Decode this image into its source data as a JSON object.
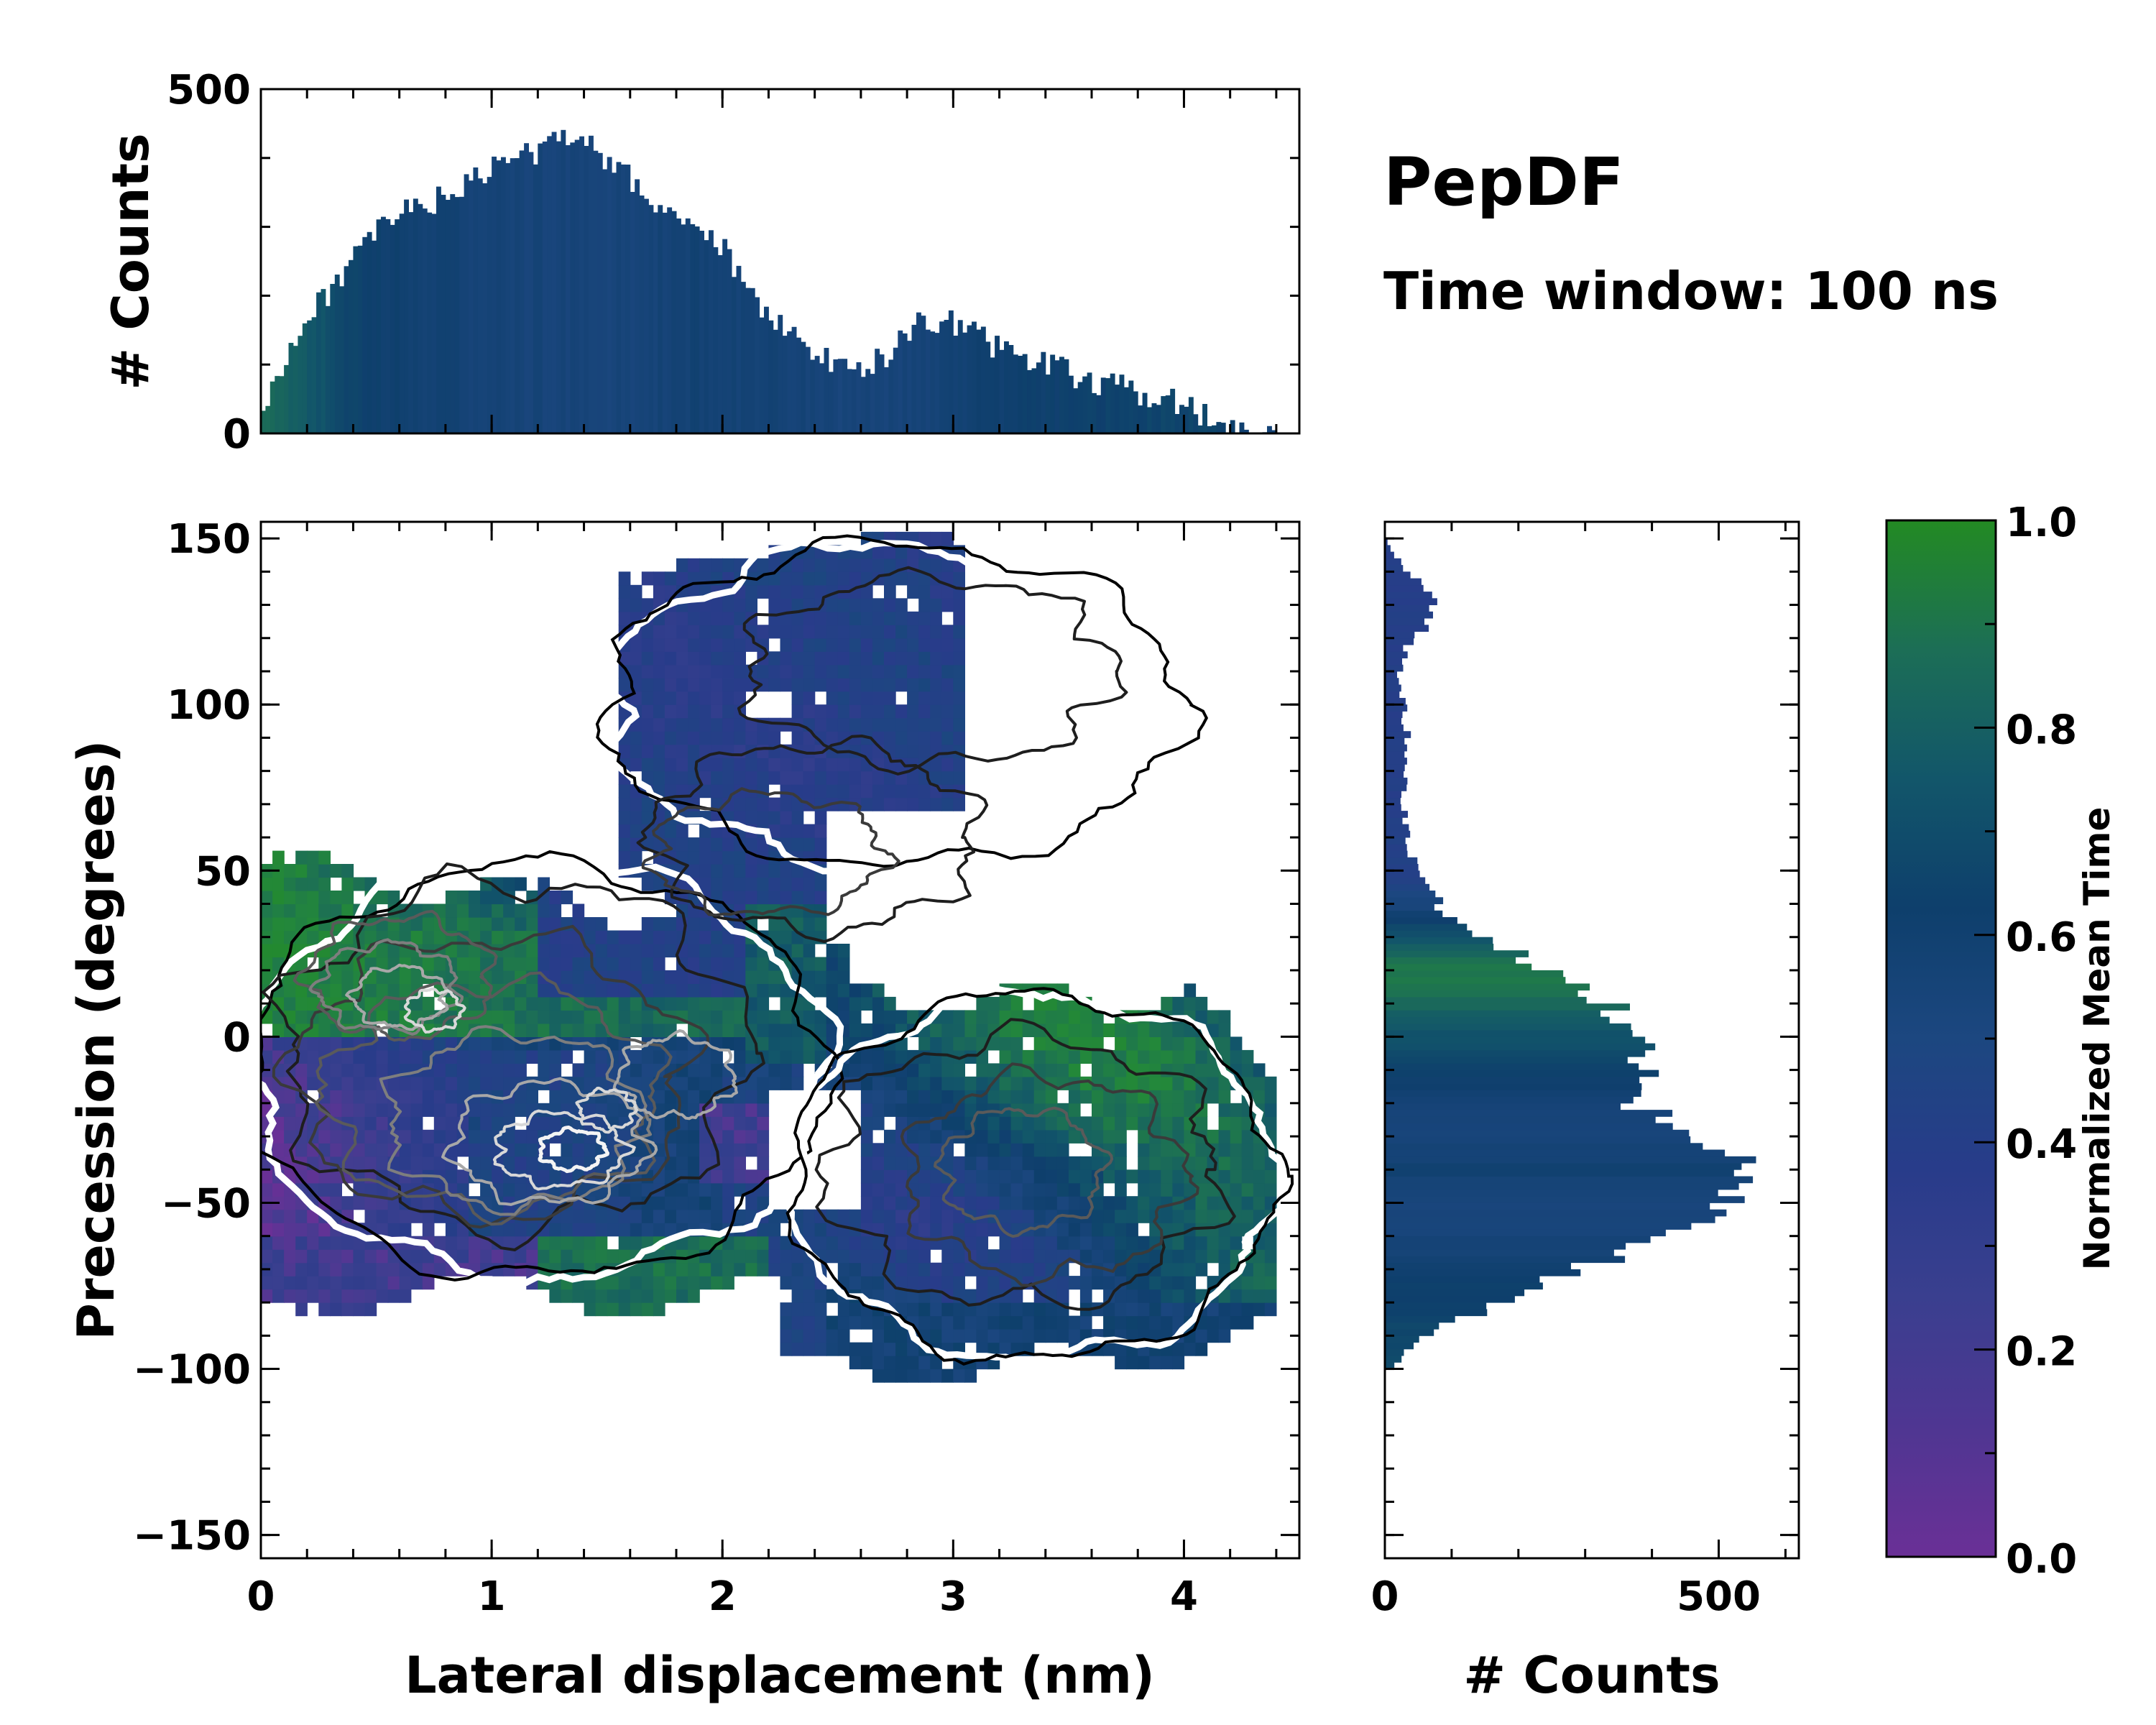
{
  "title": "PepDF",
  "subtitle": "Time window: 100 ns",
  "chart_data": [
    {
      "id": "main",
      "type": "heatmap",
      "xlabel": "Lateral displacement (nm)",
      "ylabel": "Precession (degrees)",
      "xlim": [
        0,
        4.5
      ],
      "ylim": [
        -157,
        155
      ],
      "xticks": [
        0,
        1,
        2,
        3,
        4
      ],
      "yticks": [
        -150,
        -100,
        -50,
        0,
        50,
        100,
        150
      ],
      "cell_x": 0.05,
      "cell_y": 4,
      "contour_levels": 6,
      "regions": [
        {
          "name": "low-x cluster (mean time ~0.1 near -40 deg, ~0.9 near +20 deg)",
          "x": [
            0,
            2.4
          ],
          "y": [
            -80,
            50
          ]
        },
        {
          "name": "upper branch (mean time ~0.3)",
          "x": [
            1.4,
            4.0
          ],
          "y": [
            50,
            152
          ]
        },
        {
          "name": "right lobe (mean time ~0.5-0.8)",
          "x": [
            2.3,
            4.4
          ],
          "y": [
            -100,
            12
          ]
        }
      ]
    },
    {
      "id": "top",
      "type": "bar",
      "ylabel": "# Counts",
      "xlim": [
        0,
        4.5
      ],
      "ylim": [
        0,
        500
      ],
      "yticks": [
        0,
        500
      ],
      "bin_width": 0.02,
      "x": [
        0.0,
        0.1,
        0.2,
        0.3,
        0.4,
        0.5,
        0.6,
        0.7,
        0.8,
        0.9,
        1.0,
        1.1,
        1.2,
        1.3,
        1.4,
        1.5,
        1.6,
        1.7,
        1.8,
        1.9,
        2.0,
        2.1,
        2.2,
        2.3,
        2.4,
        2.5,
        2.6,
        2.7,
        2.8,
        2.9,
        3.0,
        3.1,
        3.2,
        3.3,
        3.4,
        3.5,
        3.6,
        3.7,
        3.8,
        3.9,
        4.0,
        4.1,
        4.2,
        4.3,
        4.4
      ],
      "values": [
        20,
        110,
        160,
        210,
        250,
        290,
        320,
        330,
        345,
        360,
        385,
        400,
        410,
        430,
        440,
        395,
        370,
        335,
        320,
        285,
        270,
        210,
        175,
        140,
        115,
        100,
        98,
        108,
        150,
        165,
        160,
        142,
        125,
        110,
        100,
        88,
        78,
        68,
        60,
        52,
        40,
        25,
        14,
        6,
        0
      ],
      "mean_time": [
        0.75,
        0.7,
        0.65,
        0.58,
        0.52,
        0.5,
        0.48,
        0.46,
        0.45,
        0.44,
        0.43,
        0.42,
        0.42,
        0.42,
        0.41,
        0.41,
        0.42,
        0.43,
        0.44,
        0.45,
        0.45,
        0.45,
        0.44,
        0.44,
        0.43,
        0.42,
        0.42,
        0.42,
        0.43,
        0.44,
        0.46,
        0.47,
        0.48,
        0.49,
        0.5,
        0.5,
        0.51,
        0.52,
        0.52,
        0.53,
        0.53,
        0.52,
        0.5,
        0.48,
        0.45
      ]
    },
    {
      "id": "right",
      "type": "bar",
      "orientation": "horizontal",
      "xlabel": "# Counts",
      "xlim": [
        0,
        620
      ],
      "xticks": [
        0,
        500
      ],
      "bin_width": 2,
      "y": [
        -100,
        -95,
        -90,
        -85,
        -80,
        -75,
        -70,
        -65,
        -60,
        -55,
        -50,
        -45,
        -40,
        -35,
        -30,
        -25,
        -20,
        -15,
        -10,
        -5,
        0,
        5,
        10,
        15,
        20,
        25,
        30,
        35,
        40,
        45,
        50,
        55,
        60,
        65,
        70,
        75,
        80,
        85,
        90,
        95,
        100,
        105,
        110,
        115,
        120,
        125,
        130,
        135,
        140,
        145,
        150
      ],
      "values": [
        5,
        30,
        60,
        110,
        170,
        230,
        300,
        360,
        420,
        470,
        500,
        525,
        545,
        520,
        480,
        420,
        360,
        380,
        395,
        380,
        360,
        370,
        330,
        300,
        260,
        190,
        140,
        100,
        80,
        60,
        45,
        40,
        32,
        30,
        28,
        28,
        30,
        32,
        34,
        30,
        28,
        20,
        22,
        28,
        40,
        70,
        80,
        60,
        30,
        12,
        0
      ],
      "mean_time": [
        0.55,
        0.55,
        0.54,
        0.53,
        0.52,
        0.5,
        0.48,
        0.44,
        0.42,
        0.4,
        0.42,
        0.44,
        0.46,
        0.45,
        0.43,
        0.42,
        0.45,
        0.48,
        0.52,
        0.56,
        0.6,
        0.66,
        0.72,
        0.78,
        0.8,
        0.72,
        0.6,
        0.5,
        0.4,
        0.34,
        0.3,
        0.3,
        0.3,
        0.3,
        0.28,
        0.28,
        0.28,
        0.28,
        0.28,
        0.28,
        0.28,
        0.28,
        0.28,
        0.28,
        0.28,
        0.28,
        0.28,
        0.28,
        0.28,
        0.28,
        0.28
      ]
    },
    {
      "id": "colorbar",
      "type": "colorbar",
      "label": "Normalized Mean Time",
      "range": [
        0.0,
        1.0
      ],
      "ticks": [
        "0.0",
        "0.2",
        "0.4",
        "0.6",
        "0.8",
        "1.0"
      ],
      "colors": [
        "#6a3096",
        "#3a3f8f",
        "#283c8a",
        "#1c4780",
        "#0e3f6c",
        "#12566a",
        "#1c6e56",
        "#23883a",
        "#238a23"
      ]
    }
  ]
}
